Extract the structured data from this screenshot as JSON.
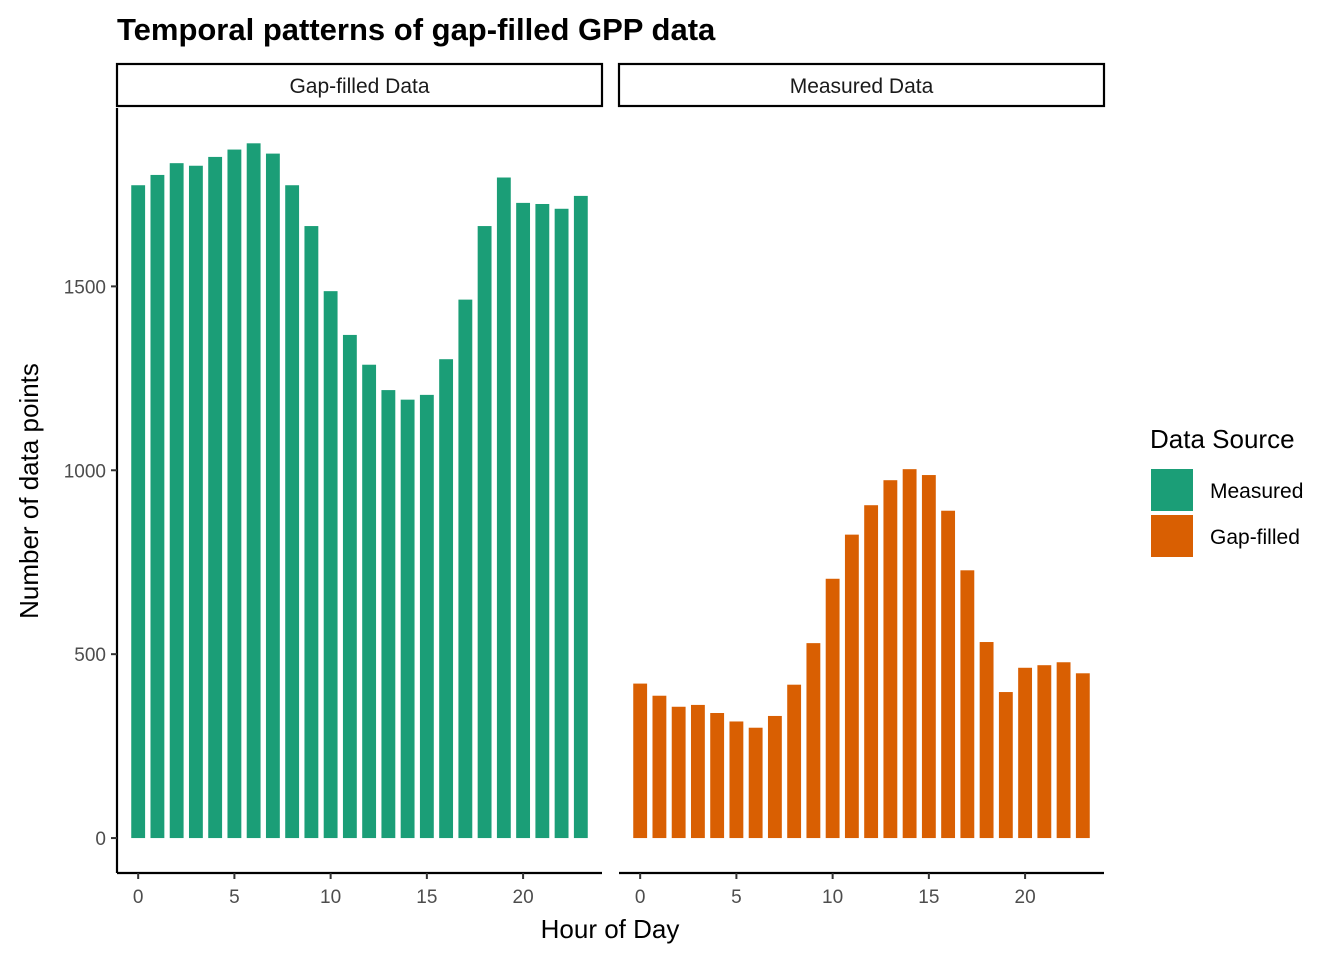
{
  "chart_data": {
    "type": "bar",
    "title": "Temporal patterns of gap-filled GPP data",
    "xlabel": "Hour of Day",
    "ylabel": "Number of data points",
    "x": [
      0,
      1,
      2,
      3,
      4,
      5,
      6,
      7,
      8,
      9,
      10,
      11,
      12,
      13,
      14,
      15,
      16,
      17,
      18,
      19,
      20,
      21,
      22,
      23
    ],
    "x_ticks": [
      0,
      5,
      10,
      15,
      20
    ],
    "y_ticks": [
      0,
      500,
      1000,
      1500
    ],
    "ylim": [
      -95,
      1985
    ],
    "grid": false,
    "legend_position": "right",
    "legend_title": "Data Source",
    "legend": [
      {
        "label": "Measured",
        "color": "#1b9e77"
      },
      {
        "label": "Gap-filled",
        "color": "#d95f02"
      }
    ],
    "panels": [
      {
        "strip": "Gap-filled Data",
        "color": "#1b9e77",
        "values": [
          1775,
          1803,
          1835,
          1828,
          1852,
          1872,
          1889,
          1861,
          1775,
          1664,
          1487,
          1368,
          1287,
          1218,
          1192,
          1205,
          1302,
          1464,
          1664,
          1796,
          1727,
          1724,
          1711,
          1746
        ]
      },
      {
        "strip": "Measured Data",
        "color": "#d95f02",
        "values": [
          420,
          387,
          357,
          362,
          340,
          317,
          300,
          332,
          417,
          530,
          705,
          825,
          905,
          973,
          1003,
          987,
          890,
          728,
          533,
          397,
          463,
          470,
          478,
          448
        ]
      }
    ]
  }
}
